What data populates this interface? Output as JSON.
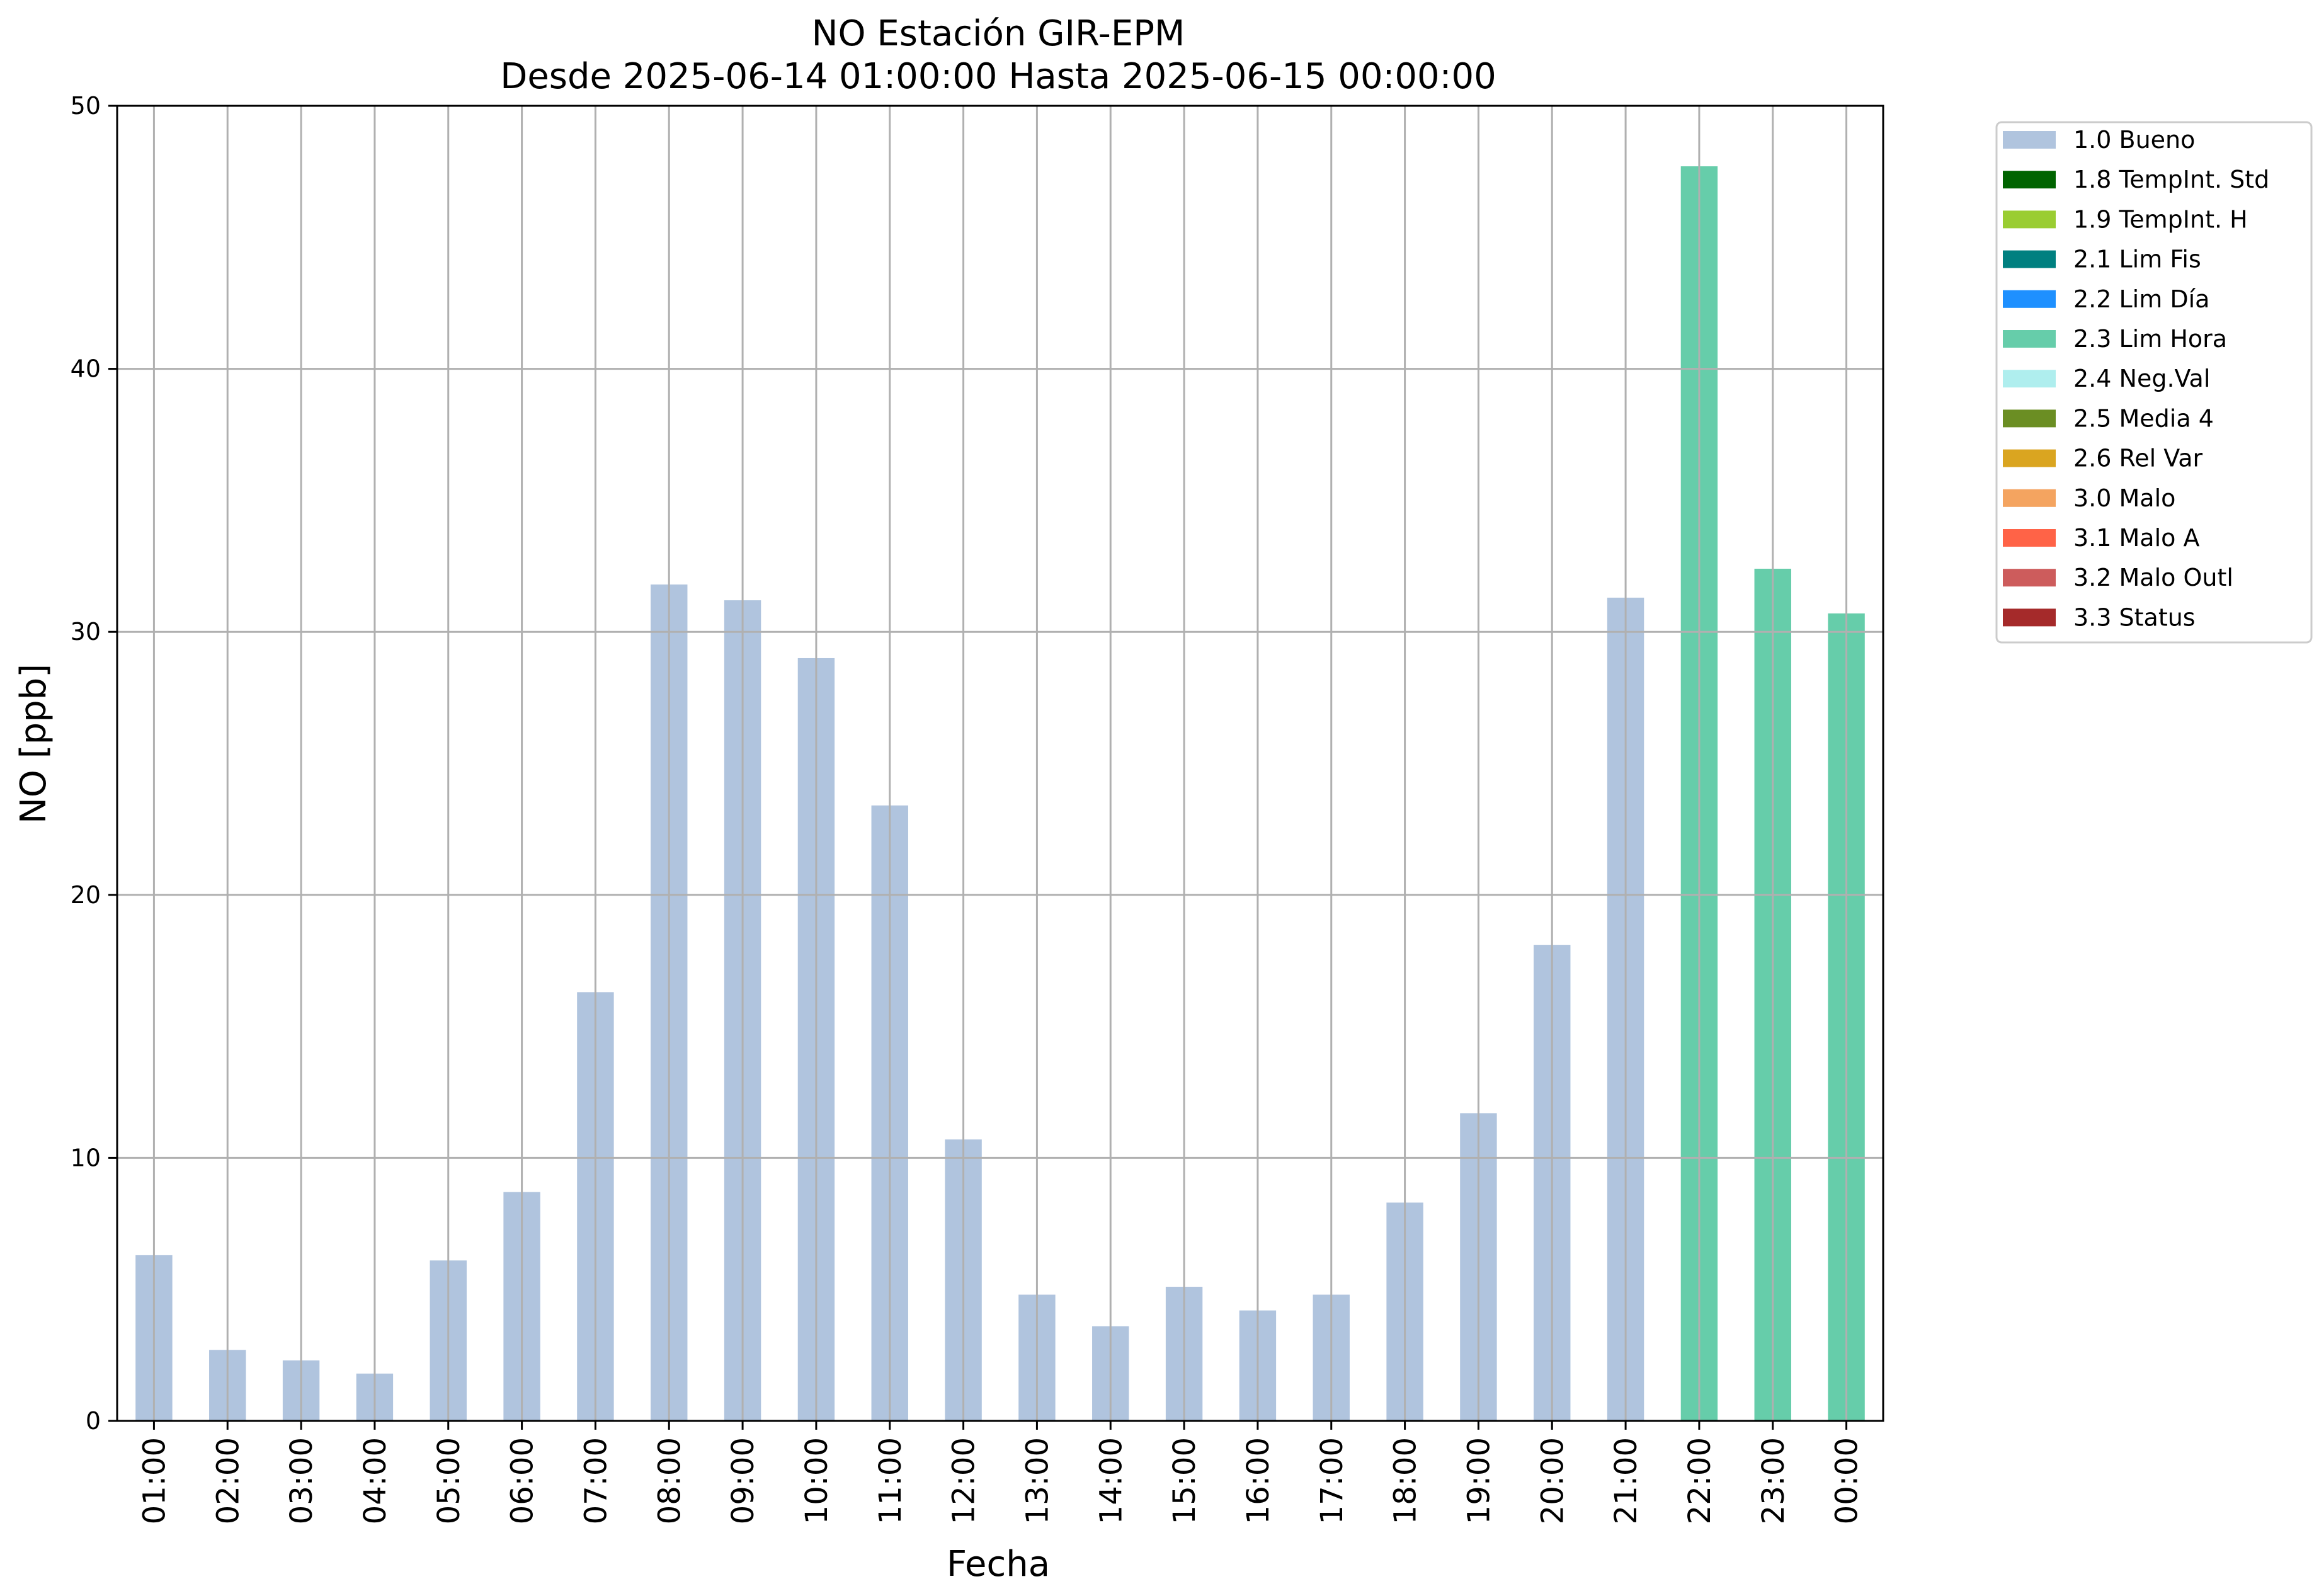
{
  "chart_data": {
    "type": "bar",
    "title": "NO Estación GIR-EPM",
    "subtitle": "Desde 2025-06-14 01:00:00 Hasta 2025-06-15 00:00:00",
    "xlabel": "Fecha",
    "ylabel": "NO [ppb]",
    "ylim": [
      0,
      50
    ],
    "yticks": [
      "0",
      "10",
      "20",
      "30",
      "40",
      "50"
    ],
    "grid": true,
    "legend_position": "outside-top-right",
    "categories": [
      "01:00",
      "02:00",
      "03:00",
      "04:00",
      "05:00",
      "06:00",
      "07:00",
      "08:00",
      "09:00",
      "10:00",
      "11:00",
      "12:00",
      "13:00",
      "14:00",
      "15:00",
      "16:00",
      "17:00",
      "18:00",
      "19:00",
      "20:00",
      "21:00",
      "22:00",
      "23:00",
      "00:00"
    ],
    "series": [
      {
        "name": "1.0 Bueno",
        "color": "#b0c4de",
        "values": [
          6.3,
          2.7,
          2.3,
          1.8,
          6.1,
          8.7,
          16.3,
          31.8,
          31.2,
          29.0,
          23.4,
          10.7,
          4.8,
          3.6,
          5.1,
          4.2,
          4.8,
          8.3,
          11.7,
          18.1,
          31.3,
          null,
          null,
          null
        ]
      },
      {
        "name": "2.3 Lim Hora",
        "color": "#66cdaa",
        "values": [
          null,
          null,
          null,
          null,
          null,
          null,
          null,
          null,
          null,
          null,
          null,
          null,
          null,
          null,
          null,
          null,
          null,
          null,
          null,
          null,
          null,
          47.7,
          32.4,
          30.7
        ]
      }
    ],
    "legend": [
      {
        "label": "1.0 Bueno",
        "color": "#b0c4de"
      },
      {
        "label": "1.8 TempInt. Std",
        "color": "#006400"
      },
      {
        "label": "1.9 TempInt. H",
        "color": "#9acd32"
      },
      {
        "label": "2.1 Lim Fis",
        "color": "#008080"
      },
      {
        "label": "2.2 Lim Día",
        "color": "#1e90ff"
      },
      {
        "label": "2.3 Lim Hora",
        "color": "#66cdaa"
      },
      {
        "label": "2.4 Neg.Val",
        "color": "#afeeee"
      },
      {
        "label": "2.5 Media 4",
        "color": "#6b8e23"
      },
      {
        "label": "2.6 Rel Var",
        "color": "#daa520"
      },
      {
        "label": "3.0 Malo",
        "color": "#f4a460"
      },
      {
        "label": "3.1 Malo A",
        "color": "#ff6347"
      },
      {
        "label": "3.2 Malo Outl",
        "color": "#cd5c5c"
      },
      {
        "label": "3.3 Status",
        "color": "#a52a2a"
      }
    ]
  }
}
